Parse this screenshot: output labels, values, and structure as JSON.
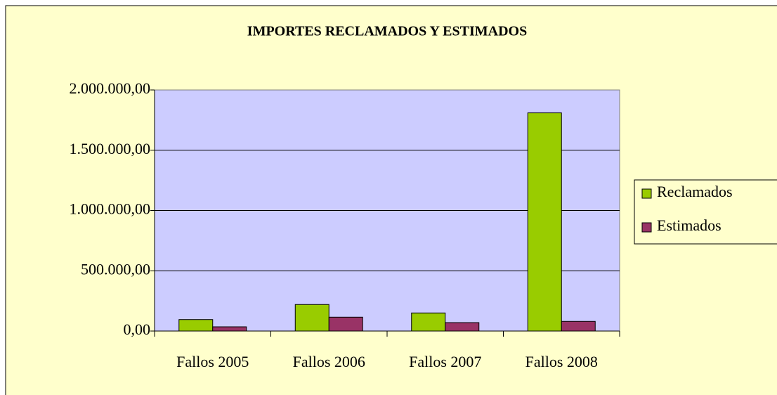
{
  "chart_data": {
    "type": "bar",
    "title": "IMPORTES RECLAMADOS Y ESTIMADOS",
    "categories": [
      "Fallos 2005",
      "Fallos 2006",
      "Fallos 2007",
      "Fallos 2008"
    ],
    "series": [
      {
        "name": "Reclamados",
        "color": "#99cc00",
        "values": [
          95000,
          220000,
          150000,
          1810000
        ]
      },
      {
        "name": "Estimados",
        "color": "#993366",
        "values": [
          35000,
          115000,
          70000,
          80000
        ]
      }
    ],
    "ylim": [
      0,
      2000000
    ],
    "yticks": [
      {
        "value": 0,
        "label": "0,00"
      },
      {
        "value": 500000,
        "label": "500.000,00"
      },
      {
        "value": 1000000,
        "label": "1.000.000,00"
      },
      {
        "value": 1500000,
        "label": "1.500.000,00"
      },
      {
        "value": 2000000,
        "label": "2.000.000,00"
      }
    ],
    "grid": true,
    "legend": "right"
  }
}
